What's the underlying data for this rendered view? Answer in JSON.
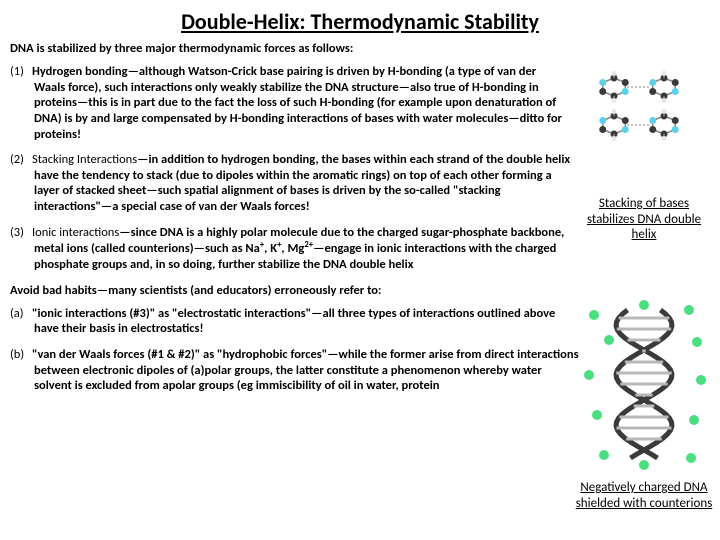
{
  "title": "Double-Helix: Thermodynamic Stability",
  "intro": "DNA is stabilized by three major thermodynamic forces as follows:",
  "items": [
    {
      "num": "(1)",
      "lead": "Hydrogen bonding",
      "body": "—although Watson-Crick base pairing is driven by H-bonding (a type of van der Waals force), such interactions only weakly stabilize the DNA structure—also true of H-bonding in proteins—this is in part due to the fact the loss of such H-bonding (for example upon denaturation of DNA) is by and large compensated by H-bonding interactions of bases with water molecules—ditto for proteins!"
    },
    {
      "num": "(2)",
      "lead": "Stacking Interactions",
      "body": "—in addition to hydrogen bonding, the bases within each strand of the double helix have the tendency to stack (due to dipoles within the aromatic rings) on top of each other forming a layer of stacked sheet—such spatial alignment of bases is driven by the so-called \"stacking interactions\"—a special case of van der Waals forces!"
    },
    {
      "num": "(3)",
      "lead": "Ionic interactions",
      "body_html": "—since DNA is a highly polar molecule due to the charged sugar-phosphate backbone, metal ions (called counterions)—such as Na<sup>+</sup>, K<sup>+</sup>, Mg<sup>2+</sup>—engage in ionic interactions with the charged phosphate groups and, in so doing, further stabilize the DNA double helix"
    }
  ],
  "avoid": "Avoid bad habits—many scientists (and educators) erroneously refer to:",
  "habits": [
    {
      "num": "(a)",
      "body": "\"ionic interactions (#3)\" as \"electrostatic interactions\"—all three types of interactions outlined above have their basis in electrostatics!"
    },
    {
      "num": "(b)",
      "body": "\"van der Waals forces (#1 & #2)\" as \"hydrophobic forces\"—while the former arise from direct interactions between electronic dipoles of (a)polar groups, the latter constitute a phenomenon whereby water solvent is excluded from apolar groups (eg immiscibility of oil in water, protein"
    }
  ],
  "caption1": "Stacking of bases stabilizes DNA double helix",
  "caption2": "Negatively charged DNA shielded with counterions",
  "fig1": {
    "atom_colors": {
      "c": "#3a3a3a",
      "n": "#5dd0e8",
      "o": "#ff4444",
      "h": "#e8e8e8"
    },
    "bond_color": "#888888"
  },
  "fig2": {
    "backbone_color": "#3a3a3a",
    "base_color": "#b8b8b8",
    "ion_color": "#4ade80"
  }
}
